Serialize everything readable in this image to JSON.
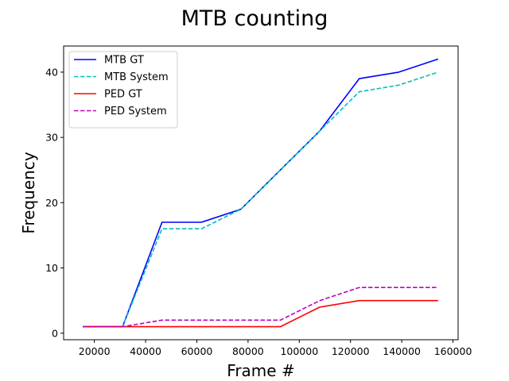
{
  "chart_data": {
    "type": "line",
    "title": "MTB counting",
    "xlabel": "Frame #",
    "ylabel": "Frequency",
    "xlim": [
      8000,
      162000
    ],
    "ylim": [
      -1,
      44
    ],
    "xticks": [
      20000,
      40000,
      60000,
      80000,
      100000,
      120000,
      140000,
      160000
    ],
    "yticks": [
      0,
      10,
      20,
      30,
      40
    ],
    "grid": false,
    "legend_position": "top-left",
    "x": [
      15500,
      31000,
      46400,
      61800,
      77200,
      92600,
      108000,
      123400,
      138800,
      154200
    ],
    "series": [
      {
        "name": "MTB GT",
        "color": "#0000ff",
        "dash": "solid",
        "values": [
          1,
          1,
          17,
          17,
          19,
          25,
          31,
          39,
          40,
          42
        ]
      },
      {
        "name": "MTB System",
        "color": "#00bfbf",
        "dash": "dashed",
        "values": [
          1,
          1,
          16,
          16,
          19,
          25,
          31,
          37,
          38,
          40
        ]
      },
      {
        "name": "PED GT",
        "color": "#ff0000",
        "dash": "solid",
        "values": [
          1,
          1,
          1,
          1,
          1,
          1,
          4,
          5,
          5,
          5
        ]
      },
      {
        "name": "PED System",
        "color": "#bf00bf",
        "dash": "dashed",
        "values": [
          1,
          1,
          2,
          2,
          2,
          2,
          5,
          7,
          7,
          7
        ]
      }
    ]
  }
}
